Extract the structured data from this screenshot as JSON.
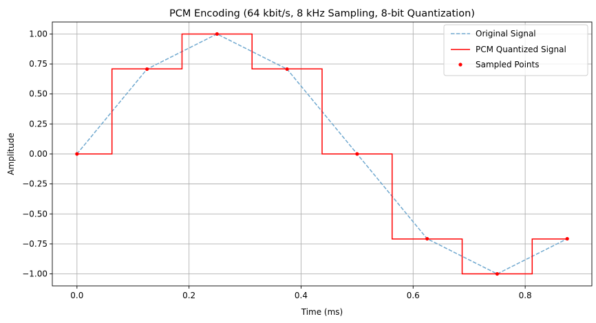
{
  "chart_data": {
    "type": "line",
    "title": "PCM Encoding (64 kbit/s, 8 kHz Sampling, 8-bit Quantization)",
    "xlabel": "Time (ms)",
    "ylabel": "Amplitude",
    "xlim": [
      -0.044,
      0.919
    ],
    "ylim": [
      -1.1,
      1.1
    ],
    "xticks": [
      0.0,
      0.2,
      0.4,
      0.6,
      0.8
    ],
    "xtick_labels": [
      "0.0",
      "0.2",
      "0.4",
      "0.6",
      "0.8"
    ],
    "yticks": [
      1.0,
      0.75,
      0.5,
      0.25,
      0.0,
      -0.25,
      -0.5,
      -0.75,
      -1.0
    ],
    "ytick_labels": [
      "1.00",
      "0.75",
      "0.50",
      "0.25",
      "0.00",
      "−0.25",
      "−0.50",
      "−0.75",
      "−1.00"
    ],
    "grid": true,
    "legend_position": "top-right",
    "series": [
      {
        "name": "Original Signal",
        "kind": "line",
        "style": "dashed",
        "color": "#6fa8cf",
        "x": [
          0.0,
          0.125,
          0.25,
          0.375,
          0.5,
          0.625,
          0.75,
          0.875
        ],
        "y": [
          0.0,
          0.7071,
          1.0,
          0.7071,
          0.0,
          -0.7071,
          -1.0,
          -0.7071
        ]
      },
      {
        "name": "PCM Quantized Signal",
        "kind": "step-mid",
        "style": "solid",
        "color": "#ff0000",
        "x": [
          0.0,
          0.125,
          0.25,
          0.375,
          0.5,
          0.625,
          0.75,
          0.875
        ],
        "y": [
          0.0,
          0.7087,
          1.0,
          0.7087,
          0.0,
          -0.7087,
          -1.0,
          -0.7087
        ]
      },
      {
        "name": "Sampled Points",
        "kind": "scatter",
        "color": "#ff0000",
        "x": [
          0.0,
          0.125,
          0.25,
          0.375,
          0.5,
          0.625,
          0.75,
          0.875
        ],
        "y": [
          0.0,
          0.7071,
          1.0,
          0.7071,
          0.0,
          -0.7071,
          -1.0,
          -0.7071
        ]
      }
    ]
  }
}
